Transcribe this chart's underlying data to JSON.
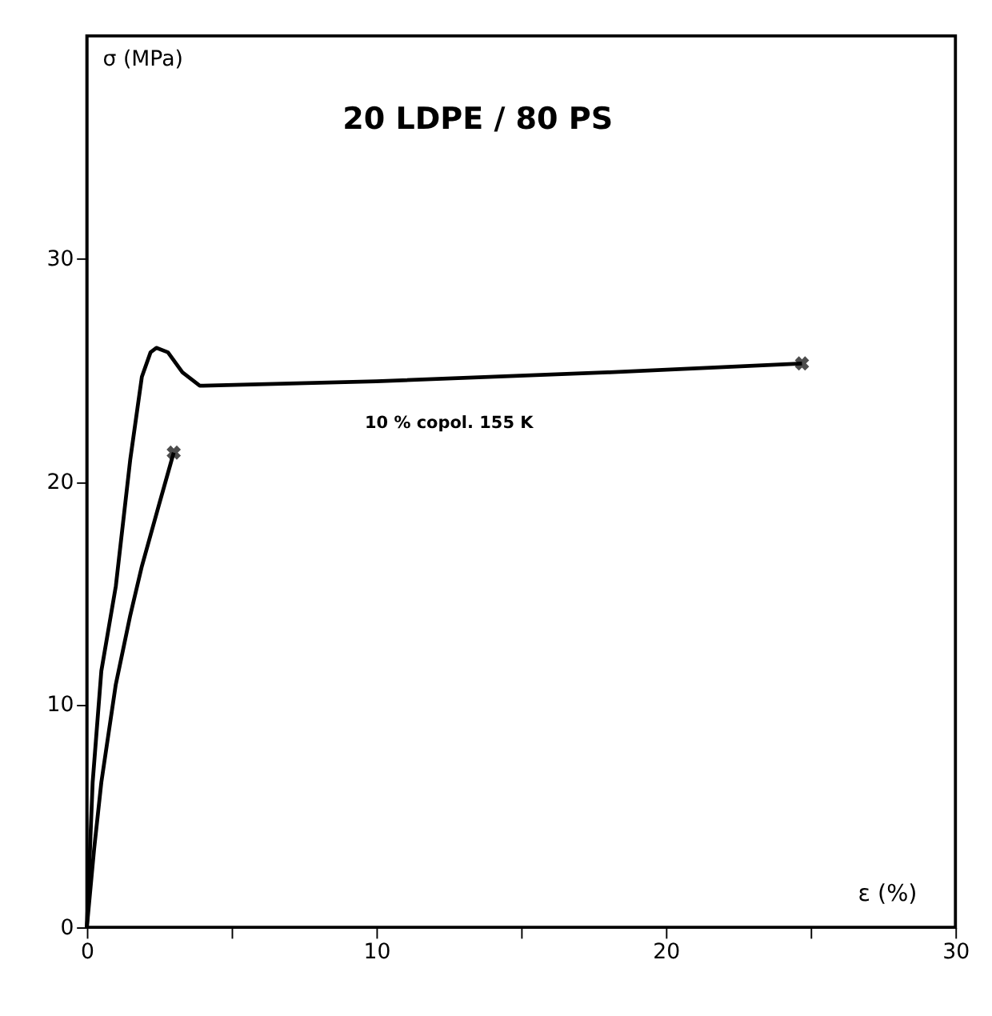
{
  "chart_data": {
    "type": "line",
    "title": "20 LDPE / 80 PS",
    "xlabel": "ε (%)",
    "ylabel": "σ (MPa)",
    "xlim": [
      0,
      30
    ],
    "ylim": [
      0,
      40
    ],
    "xticks": [
      0,
      {
        "value": 5,
        "label": null
      },
      10,
      {
        "value": 15,
        "label": null
      },
      20,
      {
        "value": 25,
        "label": null
      },
      30
    ],
    "yticks": [
      0,
      10,
      20,
      30
    ],
    "grid": false,
    "line_style": "solid",
    "annotations": [
      "10 % copol. 155 K"
    ],
    "series": [
      {
        "color": "#000000",
        "x": [
          0,
          0.2,
          0.5,
          1.0,
          1.5,
          1.9,
          2.2,
          2.4,
          2.8,
          3.3,
          3.9,
          10,
          18,
          24.7
        ],
        "values": [
          0,
          6.5,
          11.5,
          15.3,
          21,
          24.7,
          25.8,
          26.0,
          25.8,
          24.9,
          24.3,
          24.5,
          24.9,
          25.3
        ]
      },
      {
        "color": "#000000",
        "x": [
          0,
          0.25,
          0.5,
          1.0,
          1.5,
          1.9,
          2.5,
          3.0
        ],
        "values": [
          0,
          3.5,
          6.5,
          10.9,
          14.0,
          16.2,
          19.0,
          21.3
        ]
      },
      {
        "type": "scatter",
        "marker": "cross",
        "color": "#000000",
        "x": [
          24.7,
          3.0
        ],
        "values": [
          25.3,
          21.3
        ]
      }
    ]
  }
}
